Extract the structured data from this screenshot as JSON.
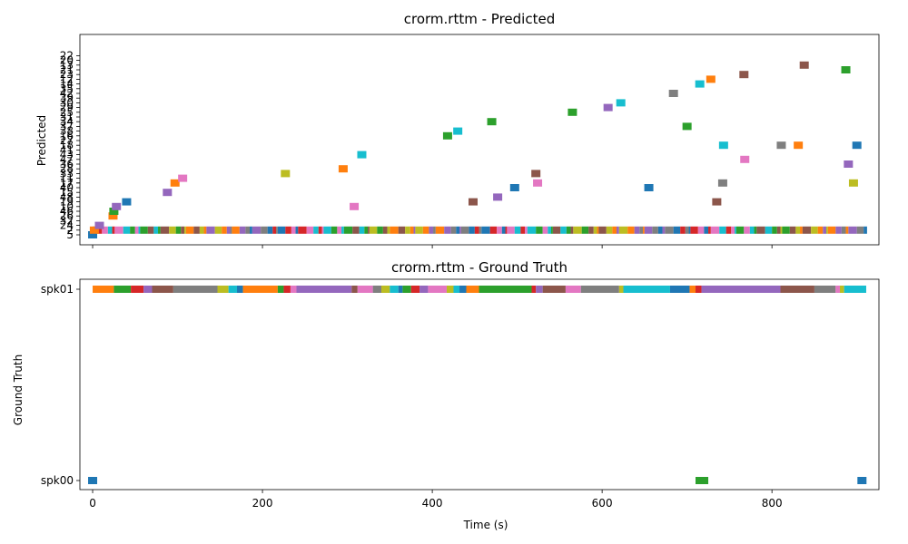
{
  "figure": {
    "xlabel": "Time (s)"
  },
  "chart_data": [
    {
      "type": "scatter",
      "title": "crorm.rttm - Predicted",
      "ylabel": "Predicted",
      "xlim": [
        -15,
        926
      ],
      "xticks": [
        0,
        200,
        400,
        600,
        800
      ],
      "xtick_labels_visible": false,
      "y_categories": [
        "5",
        "2",
        "24",
        "32",
        "26",
        "46",
        "10",
        "19",
        "48",
        "15",
        "40",
        "17",
        "11",
        "33",
        "28",
        "36",
        "47",
        "43",
        "41",
        "18",
        "27",
        "16",
        "38",
        "37",
        "34",
        "31",
        "25",
        "29",
        "30",
        "39",
        "42",
        "35",
        "14",
        "12",
        "23",
        "21",
        "13",
        "20",
        "22",
        "17"
      ],
      "background_segments_row": "2",
      "background_segments_x": [
        0,
        912
      ],
      "points": [
        {
          "x": 0,
          "y": "5",
          "color": "#1f77b4"
        },
        {
          "x": 2,
          "y": "2",
          "color": "#ff7f0e"
        },
        {
          "x": 8,
          "y": "24",
          "color": "#9467bd"
        },
        {
          "x": 24,
          "y": "26",
          "color": "#ff7f0e"
        },
        {
          "x": 25,
          "y": "46",
          "color": "#2ca02c"
        },
        {
          "x": 28,
          "y": "10",
          "color": "#9467bd"
        },
        {
          "x": 40,
          "y": "19",
          "color": "#1f77b4"
        },
        {
          "x": 88,
          "y": "15",
          "color": "#9467bd"
        },
        {
          "x": 97,
          "y": "17",
          "color": "#ff7f0e"
        },
        {
          "x": 106,
          "y": "11",
          "color": "#e377c2"
        },
        {
          "x": 227,
          "y": "33",
          "color": "#bcbd22"
        },
        {
          "x": 295,
          "y": "28",
          "color": "#ff7f0e"
        },
        {
          "x": 308,
          "y": "10",
          "color": "#e377c2"
        },
        {
          "x": 317,
          "y": "43",
          "color": "#17becf"
        },
        {
          "x": 418,
          "y": "16",
          "color": "#2ca02c"
        },
        {
          "x": 430,
          "y": "38",
          "color": "#17becf"
        },
        {
          "x": 448,
          "y": "19",
          "color": "#8c564b"
        },
        {
          "x": 470,
          "y": "34",
          "color": "#2ca02c"
        },
        {
          "x": 477,
          "y": "48",
          "color": "#9467bd"
        },
        {
          "x": 497,
          "y": "40",
          "color": "#1f77b4"
        },
        {
          "x": 522,
          "y": "33",
          "color": "#8c564b"
        },
        {
          "x": 524,
          "y": "17",
          "color": "#e377c2"
        },
        {
          "x": 565,
          "y": "25",
          "color": "#2ca02c"
        },
        {
          "x": 607,
          "y": "29",
          "color": "#9467bd"
        },
        {
          "x": 622,
          "y": "30",
          "color": "#17becf"
        },
        {
          "x": 655,
          "y": "40",
          "color": "#1f77b4"
        },
        {
          "x": 684,
          "y": "42",
          "color": "#7f7f7f"
        },
        {
          "x": 700,
          "y": "37",
          "color": "#2ca02c"
        },
        {
          "x": 715,
          "y": "14",
          "color": "#17becf"
        },
        {
          "x": 728,
          "y": "12",
          "color": "#ff7f0e"
        },
        {
          "x": 735,
          "y": "19",
          "color": "#8c564b"
        },
        {
          "x": 742,
          "y": "17",
          "color": "#7f7f7f"
        },
        {
          "x": 743,
          "y": "18",
          "color": "#17becf"
        },
        {
          "x": 767,
          "y": "23",
          "color": "#8c564b"
        },
        {
          "x": 768,
          "y": "47",
          "color": "#e377c2"
        },
        {
          "x": 811,
          "y": "18",
          "color": "#7f7f7f"
        },
        {
          "x": 831,
          "y": "18",
          "color": "#ff7f0e"
        },
        {
          "x": 838,
          "y": "13",
          "color": "#8c564b"
        },
        {
          "x": 887,
          "y": "21",
          "color": "#2ca02c"
        },
        {
          "x": 890,
          "y": "36",
          "color": "#9467bd"
        },
        {
          "x": 896,
          "y": "17",
          "color": "#bcbd22"
        },
        {
          "x": 900,
          "y": "18",
          "color": "#1f77b4"
        }
      ]
    },
    {
      "type": "scatter",
      "title": "crorm.rttm - Ground Truth",
      "ylabel": "Ground Truth",
      "xlabel": "Time (s)",
      "xlim": [
        -15,
        926
      ],
      "xticks": [
        0,
        200,
        400,
        600,
        800
      ],
      "y_categories": [
        "spk00",
        "spk01"
      ],
      "segments": [
        {
          "y": "spk01",
          "x0": 0,
          "x1": 25,
          "color": "#ff7f0e"
        },
        {
          "y": "spk01",
          "x0": 25,
          "x1": 45,
          "color": "#2ca02c"
        },
        {
          "y": "spk01",
          "x0": 45,
          "x1": 60,
          "color": "#d62728"
        },
        {
          "y": "spk01",
          "x0": 60,
          "x1": 70,
          "color": "#9467bd"
        },
        {
          "y": "spk01",
          "x0": 70,
          "x1": 95,
          "color": "#8c564b"
        },
        {
          "y": "spk01",
          "x0": 95,
          "x1": 147,
          "color": "#7f7f7f"
        },
        {
          "y": "spk01",
          "x0": 147,
          "x1": 160,
          "color": "#bcbd22"
        },
        {
          "y": "spk01",
          "x0": 160,
          "x1": 170,
          "color": "#17becf"
        },
        {
          "y": "spk01",
          "x0": 170,
          "x1": 177,
          "color": "#1f77b4"
        },
        {
          "y": "spk01",
          "x0": 177,
          "x1": 218,
          "color": "#ff7f0e"
        },
        {
          "y": "spk01",
          "x0": 218,
          "x1": 225,
          "color": "#2ca02c"
        },
        {
          "y": "spk01",
          "x0": 225,
          "x1": 233,
          "color": "#d62728"
        },
        {
          "y": "spk01",
          "x0": 233,
          "x1": 240,
          "color": "#e377c2"
        },
        {
          "y": "spk01",
          "x0": 240,
          "x1": 305,
          "color": "#9467bd"
        },
        {
          "y": "spk01",
          "x0": 305,
          "x1": 312,
          "color": "#8c564b"
        },
        {
          "y": "spk01",
          "x0": 312,
          "x1": 330,
          "color": "#e377c2"
        },
        {
          "y": "spk01",
          "x0": 330,
          "x1": 340,
          "color": "#7f7f7f"
        },
        {
          "y": "spk01",
          "x0": 340,
          "x1": 350,
          "color": "#bcbd22"
        },
        {
          "y": "spk01",
          "x0": 350,
          "x1": 360,
          "color": "#17becf"
        },
        {
          "y": "spk01",
          "x0": 360,
          "x1": 365,
          "color": "#1f77b4"
        },
        {
          "y": "spk01",
          "x0": 365,
          "x1": 375,
          "color": "#2ca02c"
        },
        {
          "y": "spk01",
          "x0": 375,
          "x1": 385,
          "color": "#d62728"
        },
        {
          "y": "spk01",
          "x0": 385,
          "x1": 395,
          "color": "#9467bd"
        },
        {
          "y": "spk01",
          "x0": 395,
          "x1": 417,
          "color": "#e377c2"
        },
        {
          "y": "spk01",
          "x0": 417,
          "x1": 425,
          "color": "#bcbd22"
        },
        {
          "y": "spk01",
          "x0": 425,
          "x1": 432,
          "color": "#17becf"
        },
        {
          "y": "spk01",
          "x0": 432,
          "x1": 440,
          "color": "#1f77b4"
        },
        {
          "y": "spk01",
          "x0": 440,
          "x1": 455,
          "color": "#ff7f0e"
        },
        {
          "y": "spk01",
          "x0": 455,
          "x1": 517,
          "color": "#2ca02c"
        },
        {
          "y": "spk01",
          "x0": 517,
          "x1": 522,
          "color": "#d62728"
        },
        {
          "y": "spk01",
          "x0": 522,
          "x1": 530,
          "color": "#9467bd"
        },
        {
          "y": "spk01",
          "x0": 530,
          "x1": 557,
          "color": "#8c564b"
        },
        {
          "y": "spk01",
          "x0": 557,
          "x1": 575,
          "color": "#e377c2"
        },
        {
          "y": "spk01",
          "x0": 575,
          "x1": 620,
          "color": "#7f7f7f"
        },
        {
          "y": "spk01",
          "x0": 620,
          "x1": 625,
          "color": "#bcbd22"
        },
        {
          "y": "spk01",
          "x0": 625,
          "x1": 680,
          "color": "#17becf"
        },
        {
          "y": "spk01",
          "x0": 680,
          "x1": 703,
          "color": "#1f77b4"
        },
        {
          "y": "spk01",
          "x0": 703,
          "x1": 710,
          "color": "#ff7f0e"
        },
        {
          "y": "spk01",
          "x0": 710,
          "x1": 717,
          "color": "#d62728"
        },
        {
          "y": "spk01",
          "x0": 717,
          "x1": 810,
          "color": "#9467bd"
        },
        {
          "y": "spk01",
          "x0": 810,
          "x1": 850,
          "color": "#8c564b"
        },
        {
          "y": "spk01",
          "x0": 850,
          "x1": 875,
          "color": "#7f7f7f"
        },
        {
          "y": "spk01",
          "x0": 875,
          "x1": 880,
          "color": "#e377c2"
        },
        {
          "y": "spk01",
          "x0": 880,
          "x1": 885,
          "color": "#bcbd22"
        },
        {
          "y": "spk01",
          "x0": 885,
          "x1": 911,
          "color": "#17becf"
        },
        {
          "y": "spk00",
          "x0": 710,
          "x1": 725,
          "color": "#2ca02c"
        }
      ],
      "points": [
        {
          "x": 0,
          "y": "spk00",
          "color": "#1f77b4"
        },
        {
          "x": 906,
          "y": "spk00",
          "color": "#1f77b4"
        }
      ]
    }
  ]
}
